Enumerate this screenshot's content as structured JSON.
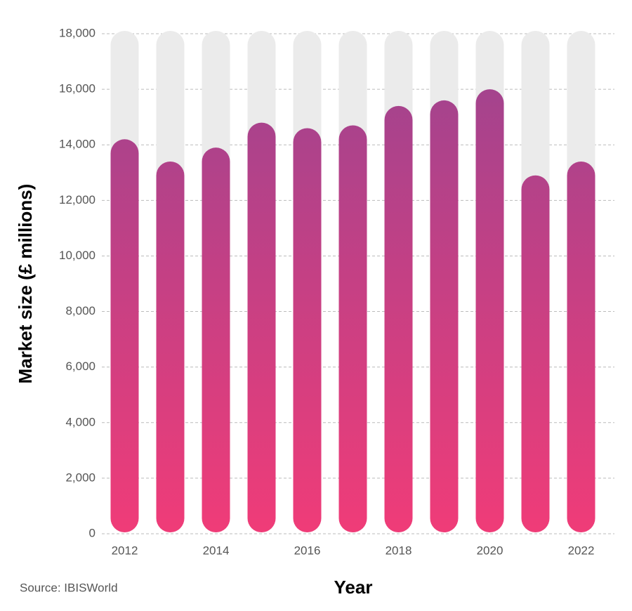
{
  "chart_data": {
    "type": "bar",
    "y_label": "Market size (£ millions)",
    "x_label": "Year",
    "source": "Source: IBISWorld",
    "categories": [
      "2012",
      null,
      "2014",
      null,
      "2016",
      null,
      "2018",
      null,
      "2020",
      null,
      "2022"
    ],
    "values": [
      14200,
      13400,
      13900,
      14800,
      14600,
      14700,
      15400,
      15600,
      16000,
      12900,
      13400
    ],
    "gradient": [
      "#9b4490",
      "#f03c78"
    ],
    "track_color": "#ebebeb",
    "ylim": [
      0,
      18000
    ],
    "yticks": [
      0,
      {
        "value": 2000,
        "label": "2,000"
      },
      {
        "value": 4000,
        "label": "4,000"
      },
      {
        "value": 6000,
        "label": "6,000"
      },
      {
        "value": 8000,
        "label": "8,000"
      },
      {
        "value": 10000,
        "label": "10,000"
      },
      {
        "value": 12000,
        "label": "12,000"
      },
      {
        "value": 14000,
        "label": "14,000"
      },
      {
        "value": 16000,
        "label": "16,000"
      },
      {
        "value": 18000,
        "label": "18,000"
      }
    ],
    "grid": true
  }
}
